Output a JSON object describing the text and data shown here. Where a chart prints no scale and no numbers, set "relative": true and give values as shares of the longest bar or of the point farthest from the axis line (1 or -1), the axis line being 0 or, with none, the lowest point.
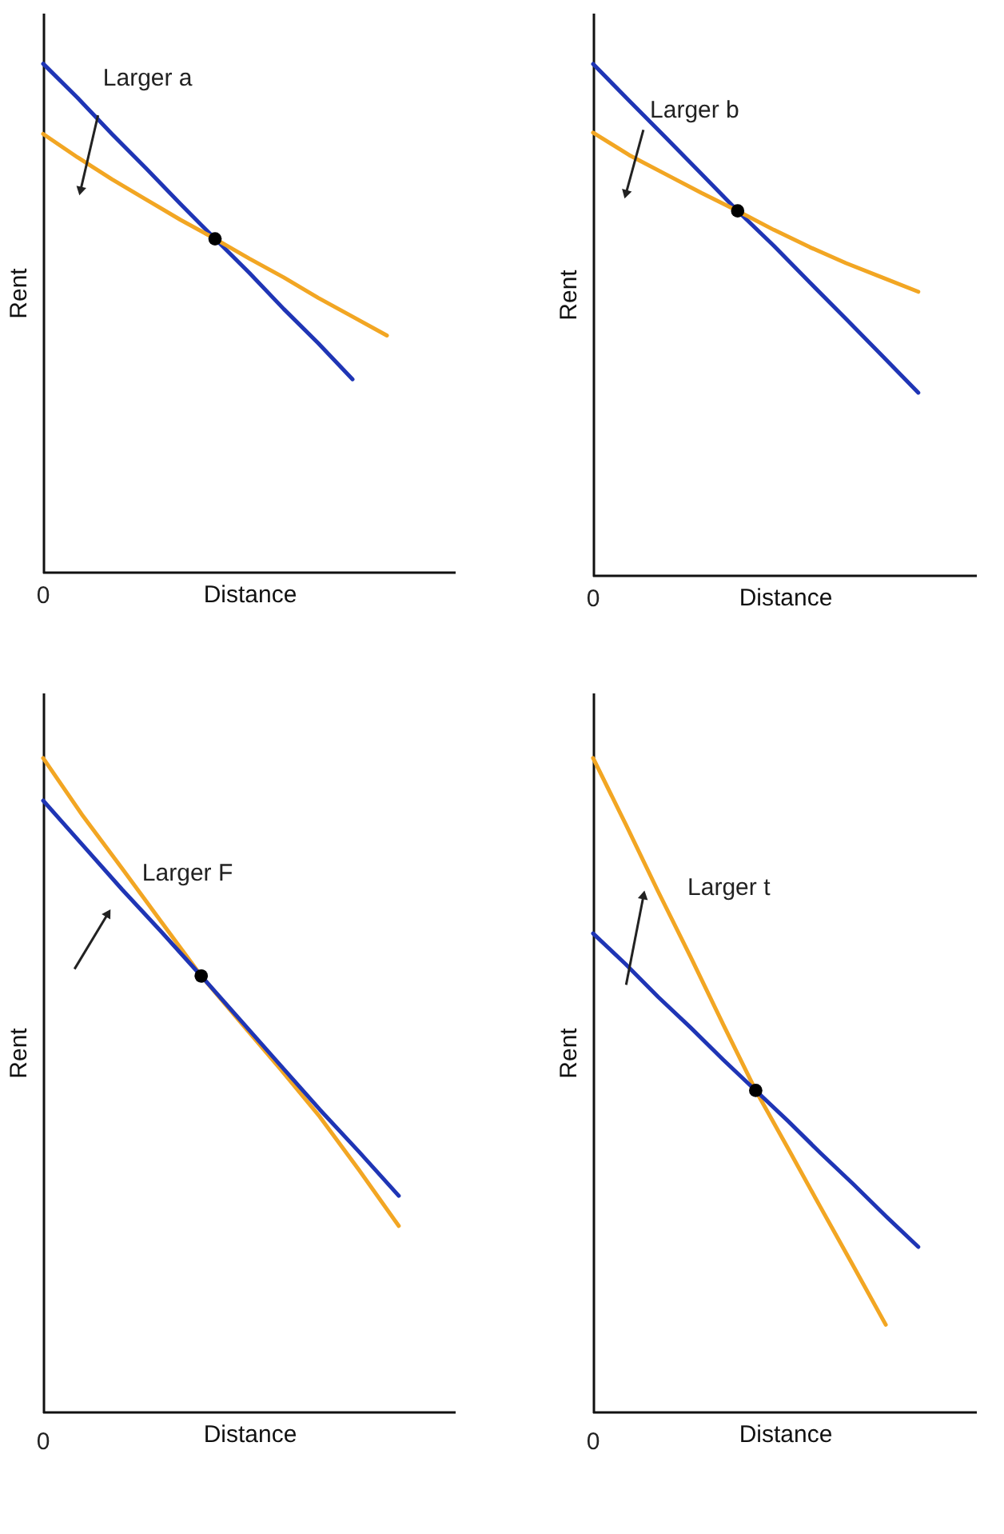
{
  "chart_data": [
    {
      "type": "line",
      "xlabel": "Distance",
      "ylabel": "Rent",
      "relative": true,
      "annotations": [
        "Larger a",
        "0"
      ],
      "categories": [
        null,
        null,
        null,
        null,
        null,
        null,
        null,
        null,
        null,
        null,
        null
      ],
      "series": [
        {
          "type": "line",
          "color": "#1f35b5",
          "values": [
            1,
            0.933,
            0.862,
            0.794,
            0.724,
            0.656,
            0.589,
            0.518,
            0.451,
            0.38,
            null
          ]
        },
        {
          "type": "line",
          "color": "#f2a623",
          "values": [
            0.862,
            0.816,
            0.773,
            0.733,
            0.693,
            0.656,
            0.617,
            0.58,
            0.54,
            0.503,
            0.466
          ]
        },
        {
          "type": "line",
          "marker": "circle",
          "color": "#000000",
          "values": [
            null,
            null,
            null,
            null,
            null,
            0.656,
            null,
            null,
            null,
            null,
            null
          ]
        }
      ]
    },
    {
      "type": "line",
      "xlabel": "Distance",
      "ylabel": "Rent",
      "relative": true,
      "annotations": [
        "Larger b",
        "0"
      ],
      "categories": [
        null,
        null,
        null,
        null,
        null,
        null,
        null,
        null,
        null,
        null
      ],
      "series": [
        {
          "type": "line",
          "color": "#1f35b5",
          "values": [
            1,
            0.928,
            0.857,
            0.785,
            0.713,
            0.645,
            0.573,
            0.502,
            0.43,
            0.358
          ]
        },
        {
          "type": "line",
          "color": "#f2a623",
          "values": [
            0.866,
            0.822,
            0.785,
            0.748,
            0.713,
            0.676,
            0.642,
            0.611,
            0.583,
            0.555
          ]
        },
        {
          "type": "line",
          "marker": "circle",
          "color": "#000000",
          "values": [
            null,
            null,
            null,
            null,
            0.713,
            null,
            null,
            null,
            null,
            null
          ]
        }
      ]
    },
    {
      "type": "line",
      "xlabel": "Distance",
      "ylabel": "Rent",
      "relative": true,
      "annotations": [
        "Larger F",
        "0"
      ],
      "categories": [
        null,
        null,
        null,
        null,
        null,
        null,
        null,
        null,
        null,
        null
      ],
      "series": [
        {
          "type": "line",
          "color": "#f2a623",
          "values": [
            1,
            0.912,
            0.831,
            0.749,
            0.667,
            0.596,
            0.525,
            0.452,
            0.37,
            0.285
          ]
        },
        {
          "type": "line",
          "color": "#1f35b5",
          "values": [
            0.935,
            0.867,
            0.799,
            0.734,
            0.667,
            0.599,
            0.531,
            0.463,
            0.398,
            0.331
          ]
        },
        {
          "type": "line",
          "marker": "circle",
          "color": "#000000",
          "values": [
            null,
            null,
            null,
            null,
            0.667,
            null,
            null,
            null,
            null,
            null
          ]
        }
      ]
    },
    {
      "type": "line",
      "xlabel": "Distance",
      "ylabel": "Rent",
      "relative": true,
      "annotations": [
        "Larger t",
        "0"
      ],
      "categories": [
        null,
        null,
        null,
        null,
        null,
        null,
        null,
        null,
        null,
        null,
        null
      ],
      "series": [
        {
          "type": "line",
          "color": "#f2a623",
          "values": [
            1,
            0.899,
            0.796,
            0.696,
            0.593,
            0.492,
            0.403,
            0.313,
            0.224,
            0.134,
            null
          ]
        },
        {
          "type": "line",
          "color": "#1f35b5",
          "values": [
            0.732,
            0.685,
            0.635,
            0.588,
            0.539,
            0.492,
            0.445,
            0.396,
            0.349,
            0.3,
            0.253
          ]
        },
        {
          "type": "line",
          "marker": "circle",
          "color": "#000000",
          "values": [
            null,
            null,
            null,
            null,
            null,
            0.492,
            null,
            null,
            null,
            null,
            null
          ]
        }
      ]
    }
  ]
}
